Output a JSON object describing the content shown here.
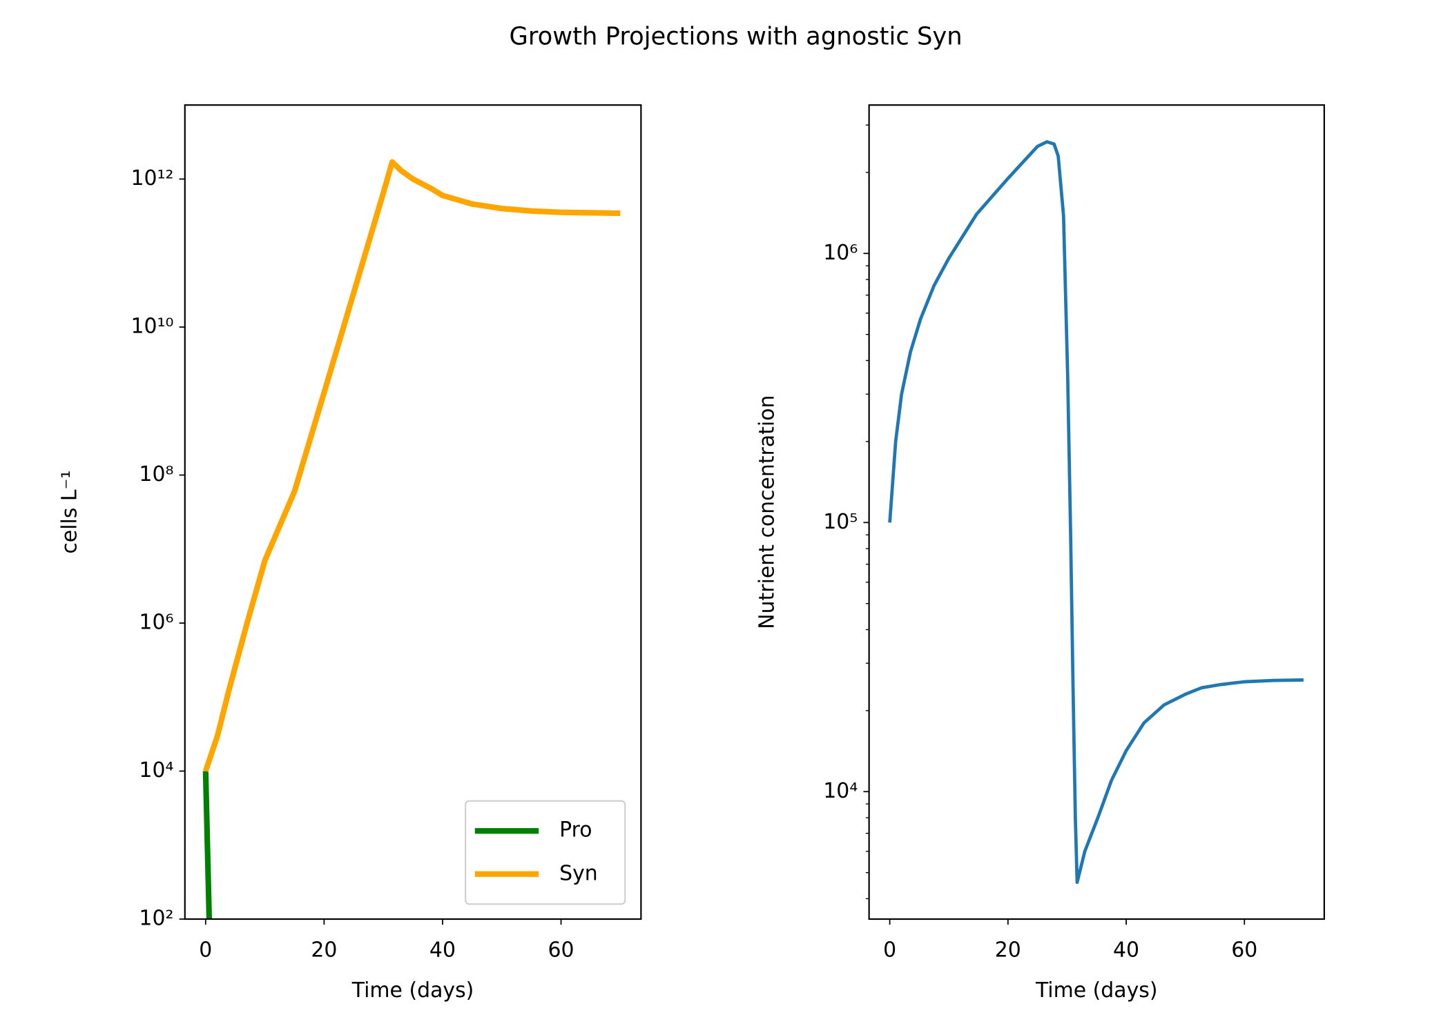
{
  "title": "Growth Projections with agnostic Syn",
  "chart_data": [
    {
      "type": "line",
      "xlabel": "Time (days)",
      "ylabel": "cells  L⁻¹",
      "yscale": "log",
      "legend": "lower right",
      "xlim": [
        -3.5,
        73.5
      ],
      "xticks": [
        0,
        20,
        40,
        60
      ],
      "ylim": [
        100,
        10000000000000.0
      ],
      "yticks": [
        {
          "value": 100,
          "label": "10²"
        },
        {
          "value": 10000,
          "label": "10⁴"
        },
        {
          "value": 1000000,
          "label": "10⁶"
        },
        {
          "value": 100000000,
          "label": "10⁸"
        },
        {
          "value": 10000000000,
          "label": "10¹⁰"
        },
        {
          "value": 1000000000000,
          "label": "10¹²"
        }
      ],
      "series": [
        {
          "name": "Pro",
          "color": "#008000",
          "x": [
            0,
            0.6
          ],
          "values": [
            10000,
            100
          ]
        },
        {
          "name": "Syn",
          "color": "#ffa500",
          "x": [
            0,
            2,
            4,
            7,
            10,
            15,
            20,
            25,
            30,
            31.5,
            33,
            35,
            38,
            40,
            45,
            50,
            55,
            60,
            65,
            70
          ],
          "values": [
            10000,
            30000,
            130000,
            1000000,
            7000000,
            60000000,
            1300000000,
            29000000000,
            650000000000,
            1700000000000,
            1300000000000,
            1000000000000,
            750000000000,
            600000000000,
            460000000000,
            400000000000,
            370000000000,
            355000000000,
            350000000000,
            345000000000
          ]
        }
      ]
    },
    {
      "type": "line",
      "xlabel": "Time (days)",
      "ylabel": "Nutrient concentration",
      "yscale": "log",
      "xlim": [
        -3.5,
        73.5
      ],
      "xticks": [
        0,
        20,
        40,
        60
      ],
      "ylim": [
        3360,
        3560000
      ],
      "yticks": [
        {
          "value": 10000,
          "label": "10⁴"
        },
        {
          "value": 100000,
          "label": "10⁵"
        },
        {
          "value": 1000000,
          "label": "10⁶"
        }
      ],
      "yminorticks": [
        4000,
        5000,
        6000,
        7000,
        8000,
        9000,
        20000,
        30000,
        40000,
        50000,
        60000,
        70000,
        80000,
        90000,
        200000,
        300000,
        400000,
        500000,
        600000,
        700000,
        800000,
        900000,
        2000000,
        3000000
      ],
      "series": [
        {
          "color": "#1f77b4",
          "x": [
            0,
            1,
            2,
            3.5,
            5.2,
            7.5,
            10,
            14.7,
            20,
            25,
            26.6,
            27.8,
            28.5,
            29.4,
            30.1,
            30.6,
            31,
            31.4,
            31.7,
            33,
            35.3,
            37.5,
            40,
            43,
            46.4,
            50,
            52.7,
            56,
            60,
            65,
            70
          ],
          "values": [
            100000,
            200000,
            300000,
            430000,
            570000,
            760000,
            960000,
            1400000,
            1900000,
            2500000,
            2600000,
            2550000,
            2300000,
            1380000,
            350000,
            90000,
            25000,
            8000,
            4600,
            6000,
            8100,
            11000,
            14200,
            18000,
            21000,
            23000,
            24300,
            25000,
            25600,
            25900,
            26000
          ]
        }
      ]
    }
  ]
}
